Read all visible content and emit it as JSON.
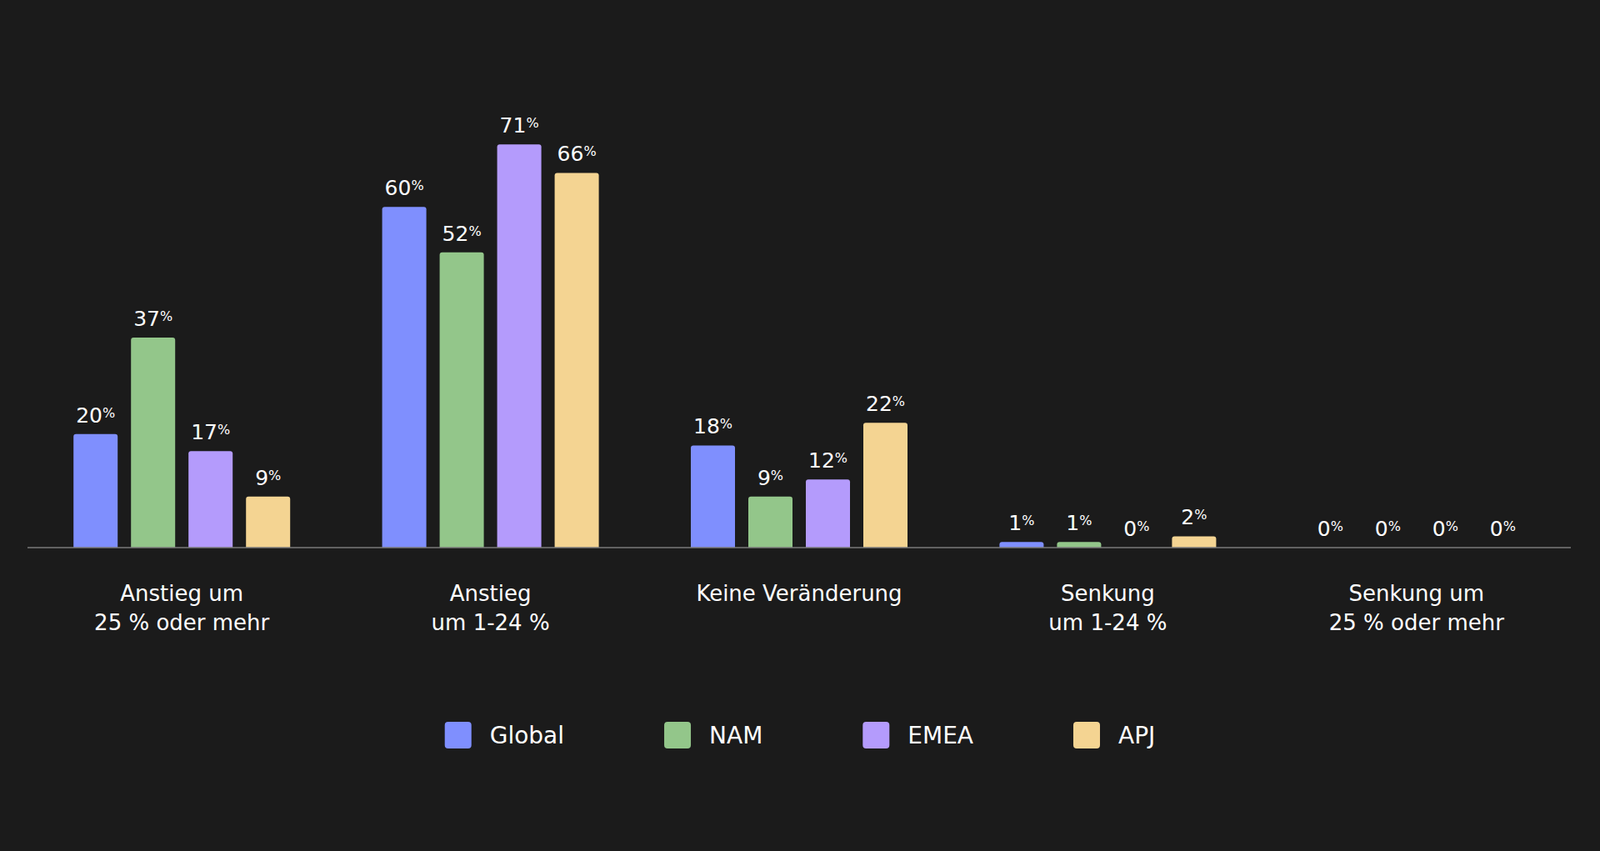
{
  "chart_data": {
    "type": "bar",
    "categories": [
      "Anstieg um\n25 % oder mehr",
      "Anstieg\num 1-24 %",
      "Keine Veränderung",
      "Senkung\num 1-24 %",
      "Senkung um\n25 % oder mehr"
    ],
    "series": [
      {
        "name": "Global",
        "color": "#7f8ffe",
        "values": [
          20,
          60,
          18,
          1,
          0
        ],
        "value_labels": [
          "20%",
          "60%",
          "18%",
          "1%",
          "0%"
        ]
      },
      {
        "name": "NAM",
        "color": "#93c68a",
        "values": [
          37,
          52,
          9,
          1,
          0
        ],
        "value_labels": [
          "37%",
          "52%",
          "9%",
          "1%",
          "0%"
        ]
      },
      {
        "name": "EMEA",
        "color": "#b49bfc",
        "values": [
          17,
          71,
          12,
          0,
          0
        ],
        "value_labels": [
          "17%",
          "71%",
          "12%",
          "0%",
          "0%"
        ]
      },
      {
        "name": "APJ",
        "color": "#f4d492",
        "values": [
          9,
          66,
          22,
          2,
          0
        ],
        "value_labels": [
          "9%",
          "66%",
          "22%",
          "2%",
          "0%"
        ]
      }
    ],
    "ylim": [
      0,
      80
    ],
    "grid": false,
    "legend": "bottom",
    "data_labels": true,
    "tick_labels": "x"
  }
}
